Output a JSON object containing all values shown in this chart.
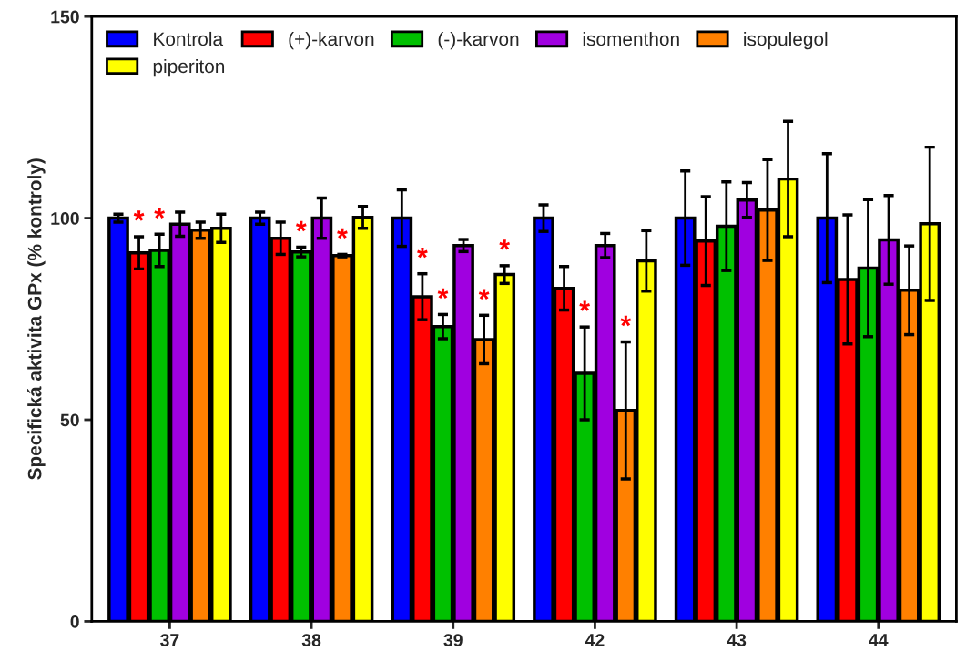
{
  "chart_data": {
    "type": "bar",
    "ylabel": "Specifická aktivita GPx (% kontroly)",
    "categories": [
      "37",
      "38",
      "39",
      "42",
      "43",
      "44"
    ],
    "series": [
      {
        "name": "Kontrola",
        "color": "#0000ff",
        "values": [
          100,
          100,
          100,
          100,
          100,
          100
        ],
        "errors": [
          1,
          1.5,
          7,
          3.3,
          11.7,
          16
        ],
        "value_labels": [
          null,
          null,
          null,
          null,
          null,
          null
        ]
      },
      {
        "name": "(+)-karvon",
        "color": "#ff0000",
        "values": [
          91.4,
          95,
          80.5,
          82.6,
          94.3,
          84.8
        ],
        "errors": [
          4,
          4,
          5.7,
          5.4,
          11,
          16
        ],
        "value_labels": [
          "*",
          null,
          "*",
          null,
          null,
          null
        ]
      },
      {
        "name": "(-)-karvon",
        "color": "#00c000",
        "values": [
          92,
          91.6,
          73.1,
          61.5,
          98,
          87.6
        ],
        "errors": [
          4,
          1.2,
          3,
          11.5,
          11,
          17
        ],
        "value_labels": [
          "*",
          "*",
          "*",
          "*",
          null,
          null
        ]
      },
      {
        "name": "isomenthon",
        "color": "#a000e0",
        "values": [
          98.5,
          100,
          93.2,
          93.2,
          104.5,
          94.6
        ],
        "errors": [
          3,
          5,
          1.5,
          3,
          4.3,
          11
        ],
        "value_labels": [
          null,
          null,
          null,
          null,
          null,
          null
        ]
      },
      {
        "name": "isopulegol",
        "color": "#ff8000",
        "values": [
          97,
          90.7,
          69.9,
          52.3,
          102,
          82.1
        ],
        "errors": [
          2,
          0.3,
          6,
          17,
          12.5,
          11
        ],
        "value_labels": [
          null,
          "*",
          "*",
          "*",
          null,
          null
        ]
      },
      {
        "name": "piperiton",
        "color": "#ffff00",
        "values": [
          97.5,
          100.2,
          86,
          89.4,
          109.7,
          98.6
        ],
        "errors": [
          3.5,
          2.7,
          2.2,
          7.5,
          14.3,
          19
        ],
        "value_labels": [
          null,
          null,
          "*",
          null,
          null,
          null
        ]
      }
    ],
    "ylim": [
      0,
      150
    ],
    "yticks": [
      0,
      50,
      100,
      150
    ],
    "grid": false,
    "legend": "top"
  }
}
